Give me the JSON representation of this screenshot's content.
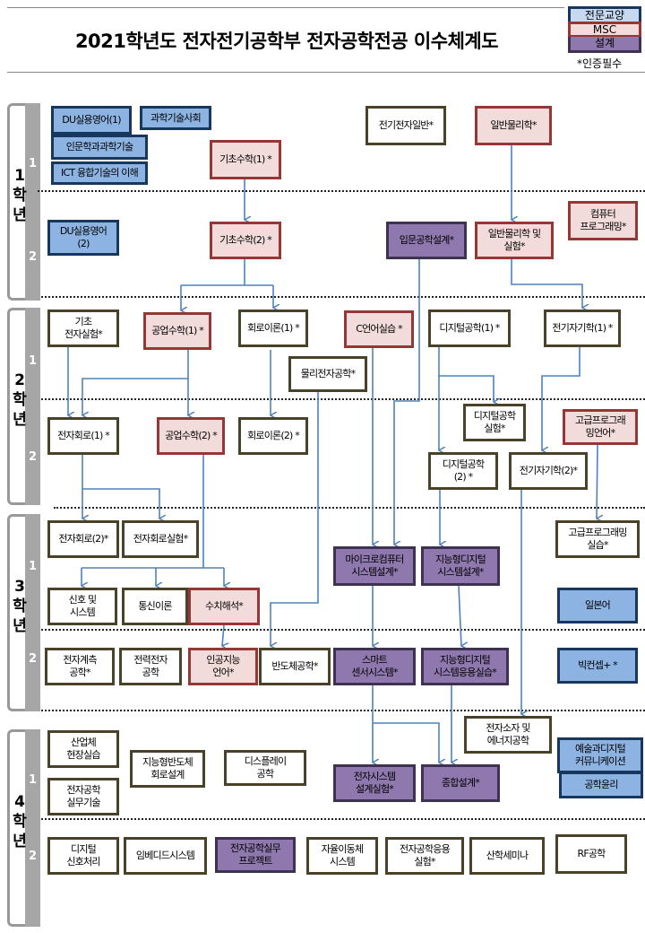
{
  "title": "2021학년도 전자전기공학부 전자공학전공 이수체계도",
  "legend": [
    {
      "label": "전문교양",
      "type": "gen"
    },
    {
      "label": "MSC",
      "type": "msc"
    },
    {
      "label": "설계",
      "type": "design"
    }
  ],
  "certification_note": "*인증필수",
  "colors": {
    "gen": "#8db3e2",
    "msc": "#f2dcdb",
    "design": "#8e78ae",
    "plain": "#ffffff",
    "arrow": "#4f81bd"
  },
  "years": [
    {
      "label": "1\n학\n년",
      "semesters": [
        "1",
        "2"
      ]
    },
    {
      "label": "2\n학\n년",
      "semesters": [
        "1",
        "2"
      ]
    },
    {
      "label": "3\n학\n년",
      "semesters": [
        "1",
        "2"
      ]
    },
    {
      "label": "4\n학\n년",
      "semesters": [
        "1",
        "2"
      ]
    }
  ],
  "courses": [
    {
      "name": "DU실용영어(1)",
      "type": "gen"
    },
    {
      "name": "과학기술사회",
      "type": "gen"
    },
    {
      "name": "인문학과과학기술",
      "type": "gen"
    },
    {
      "name": "ICT 융합기술의 이해",
      "type": "gen"
    },
    {
      "name": "기초수학(1) *",
      "type": "msc"
    },
    {
      "name": "전기전자일반*",
      "type": "plain"
    },
    {
      "name": "일반물리학*",
      "type": "msc"
    },
    {
      "name": "DU실용영어\n(2)",
      "type": "gen"
    },
    {
      "name": "기초수학(2) *",
      "type": "msc"
    },
    {
      "name": "입문공학설계*",
      "type": "design"
    },
    {
      "name": "일반물리학 및\n실험*",
      "type": "msc"
    },
    {
      "name": "컴퓨터\n프로그래밍*",
      "type": "msc"
    },
    {
      "name": "기초\n전자실험*",
      "type": "plain"
    },
    {
      "name": "공업수학(1) *",
      "type": "msc"
    },
    {
      "name": "회로이론(1) *",
      "type": "plain"
    },
    {
      "name": "C언어실습 *",
      "type": "msc"
    },
    {
      "name": "디지털공학(1) *",
      "type": "plain"
    },
    {
      "name": "전기자기학(1) *",
      "type": "plain"
    },
    {
      "name": "물리전자공학*",
      "type": "plain"
    },
    {
      "name": "디지털공학\n실험*",
      "type": "plain"
    },
    {
      "name": "고급프로그래\n밍언어*",
      "type": "msc"
    },
    {
      "name": "전자회로(1) *",
      "type": "plain"
    },
    {
      "name": "공업수학(2) *",
      "type": "msc"
    },
    {
      "name": "회로이론(2) *",
      "type": "plain"
    },
    {
      "name": "디지털공학\n(2) *",
      "type": "plain"
    },
    {
      "name": "전기자기학(2)*",
      "type": "plain"
    },
    {
      "name": "전자회로(2)*",
      "type": "plain"
    },
    {
      "name": "전자회로실험*",
      "type": "plain"
    },
    {
      "name": "고급프로그래밍\n실습*",
      "type": "plain"
    },
    {
      "name": "마이크로컴퓨터\n시스템설계*",
      "type": "design"
    },
    {
      "name": "지능형디지털\n시스템설계*",
      "type": "design"
    },
    {
      "name": "신호 및\n시스템",
      "type": "plain"
    },
    {
      "name": "통신이론",
      "type": "plain"
    },
    {
      "name": "수치해석*",
      "type": "msc"
    },
    {
      "name": "일본어",
      "type": "gen"
    },
    {
      "name": "전자계측\n공학*",
      "type": "plain"
    },
    {
      "name": "전력전자\n공학",
      "type": "plain"
    },
    {
      "name": "인공지능\n언어*",
      "type": "msc"
    },
    {
      "name": "반도체공학*",
      "type": "plain"
    },
    {
      "name": "스마트\n센서시스템*",
      "type": "design"
    },
    {
      "name": "지능형디지털\n시스템응용실습*",
      "type": "design"
    },
    {
      "name": "빅컨셉+ *",
      "type": "gen"
    },
    {
      "name": "산업체\n현장실습",
      "type": "plain"
    },
    {
      "name": "지능형반도체\n회로설계",
      "type": "plain"
    },
    {
      "name": "디스플레이\n공학",
      "type": "plain"
    },
    {
      "name": "전자소자 및\n에너지공학",
      "type": "plain"
    },
    {
      "name": "예술과디지털\n커뮤니케이션",
      "type": "gen"
    },
    {
      "name": "공학윤리",
      "type": "gen"
    },
    {
      "name": "전자시스템\n설계실험*",
      "type": "design"
    },
    {
      "name": "종합설계*",
      "type": "design"
    },
    {
      "name": "전자공학\n실무기술",
      "type": "plain"
    },
    {
      "name": "디지털\n신호처리",
      "type": "plain"
    },
    {
      "name": "임베디드시스템",
      "type": "plain"
    },
    {
      "name": "전자공학실무\n프로젝트",
      "type": "design"
    },
    {
      "name": "자율이동체\n시스템",
      "type": "plain"
    },
    {
      "name": "전자공학응용\n실험*",
      "type": "plain"
    },
    {
      "name": "산학세미나",
      "type": "plain"
    },
    {
      "name": "RF공학",
      "type": "plain"
    }
  ]
}
